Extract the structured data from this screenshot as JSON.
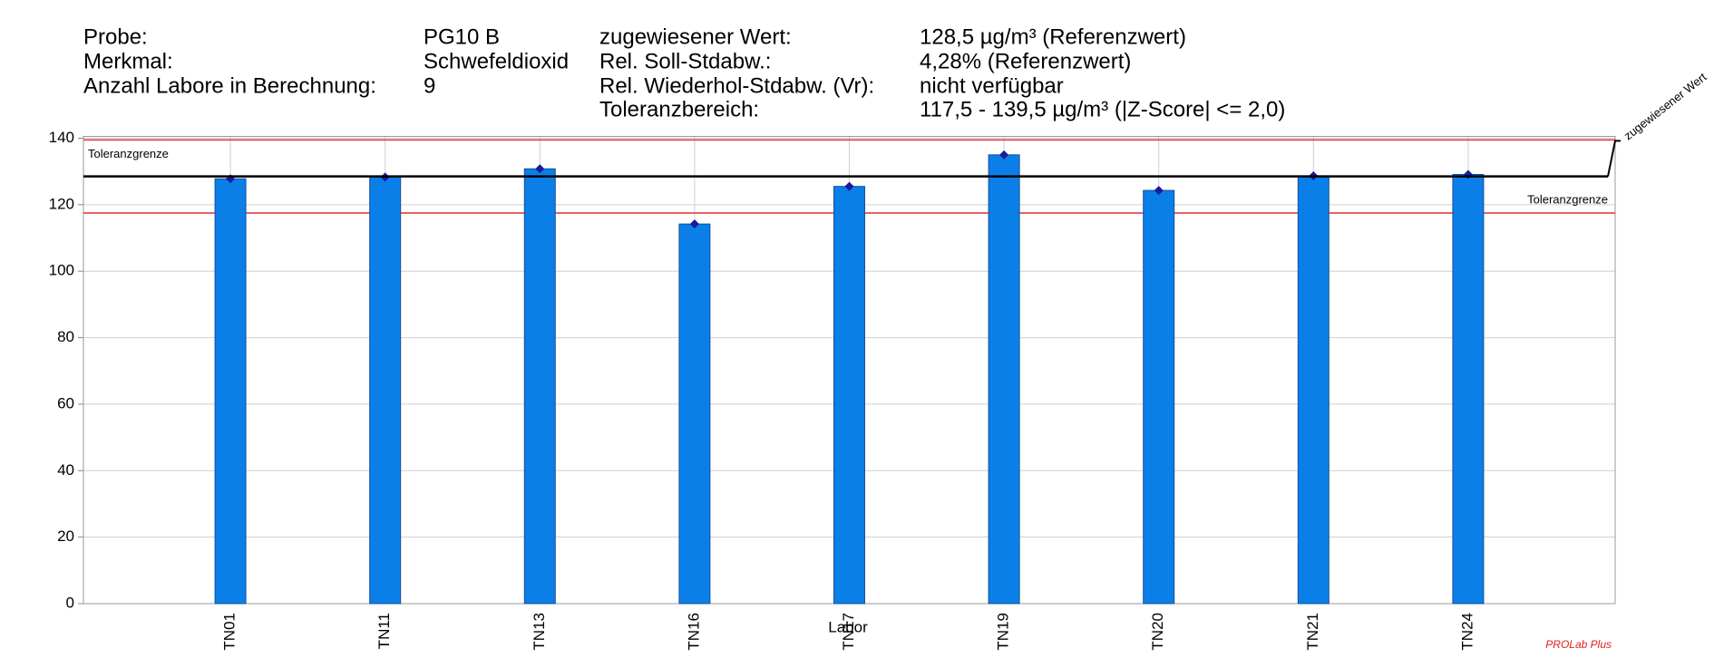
{
  "header": {
    "left": [
      [
        "Probe:",
        "PG10 B"
      ],
      [
        "Merkmal:",
        "Schwefeldioxid"
      ],
      [
        "Anzahl Labore in Berechnung:",
        "9"
      ]
    ],
    "right": [
      [
        "zugewiesener Wert:",
        "128,5 µg/m³ (Referenzwert)"
      ],
      [
        "Rel. Soll-Stdabw.:",
        "4,28% (Referenzwert)"
      ],
      [
        "Rel. Wiederhol-Stdabw. (Vr):",
        "nicht verfügbar"
      ],
      [
        "Toleranzbereich:",
        "117,5 - 139,5 µg/m³ (|Z-Score| <= 2,0)"
      ]
    ]
  },
  "chart_data": {
    "type": "bar",
    "categories": [
      "TN01",
      "TN11",
      "TN13",
      "TN16",
      "TN17",
      "TN19",
      "TN20",
      "TN21",
      "TN24"
    ],
    "values": [
      127.8,
      128.3,
      130.8,
      114.2,
      125.5,
      135.0,
      124.3,
      128.7,
      129.1
    ],
    "color": "#0a7fe8",
    "marker_color": "#1a1a9a",
    "xlabel": "Labor",
    "ylim": [
      0,
      140
    ],
    "yticks": [
      0,
      20,
      40,
      60,
      80,
      100,
      120,
      140
    ],
    "grid": true,
    "assigned_value": {
      "label": "zugewiesener Wert",
      "value": 128.5,
      "color": "#000000"
    },
    "tolerance": {
      "label": "Toleranzgrenze",
      "lower": 117.5,
      "upper": 139.5,
      "color": "#e03030"
    }
  },
  "footer": "PROLab Plus"
}
